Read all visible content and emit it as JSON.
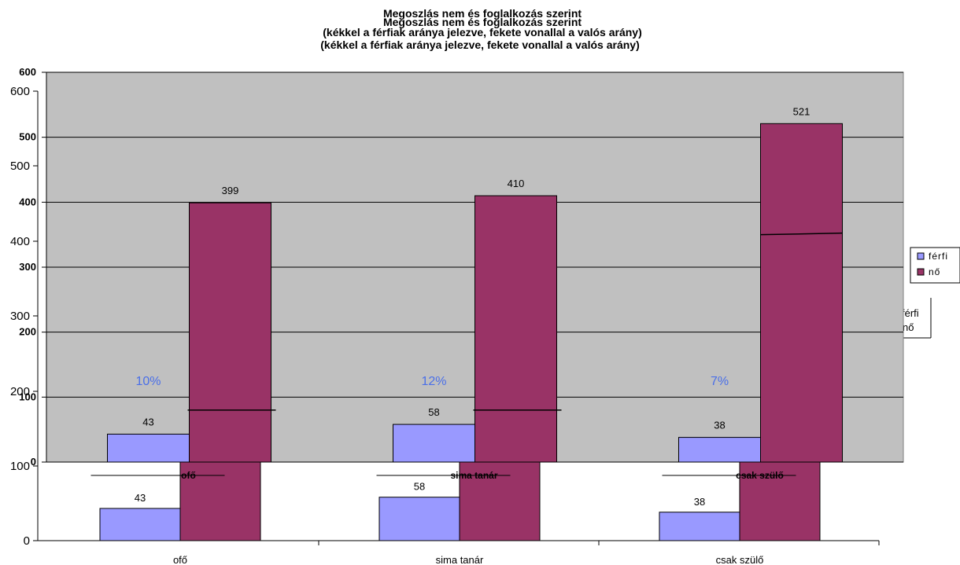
{
  "chart_data": [
    {
      "type": "bar",
      "title": "Megoszlás nem és foglalkozás szerint",
      "subtitle": "(kékkel a férfiak aránya jelezve, fekete vonallal a valós arány)",
      "categories": [
        "ofő",
        "sima tanár",
        "csak szülő"
      ],
      "series": [
        {
          "name": "férfi",
          "values": [
            43,
            58,
            38
          ]
        },
        {
          "name": "nő",
          "values": [
            399,
            410,
            521
          ]
        }
      ],
      "percent_labels": [
        "10%",
        "12%",
        "7%"
      ],
      "real_ratio_line": [
        80,
        80,
        350
      ],
      "ylim": [
        0,
        600
      ],
      "yticks": [
        0,
        100,
        200,
        300,
        400,
        500,
        600
      ],
      "grid": true,
      "legend": "right",
      "colors": {
        "férfi": "#9999ff",
        "nő": "#993366",
        "plot_bg": "#c0c0c0",
        "percent": "#4a6fe8"
      }
    },
    {
      "type": "bar",
      "categories": [
        "ofő",
        "sima tanár",
        "csak szülő"
      ],
      "series": [
        {
          "name": "férfi",
          "values": [
            43,
            58,
            38
          ]
        },
        {
          "name": "nő",
          "values": [
            399,
            410,
            521
          ]
        }
      ],
      "yticks": [
        0,
        100,
        200,
        300,
        400,
        500,
        600
      ],
      "legend": "right"
    }
  ]
}
